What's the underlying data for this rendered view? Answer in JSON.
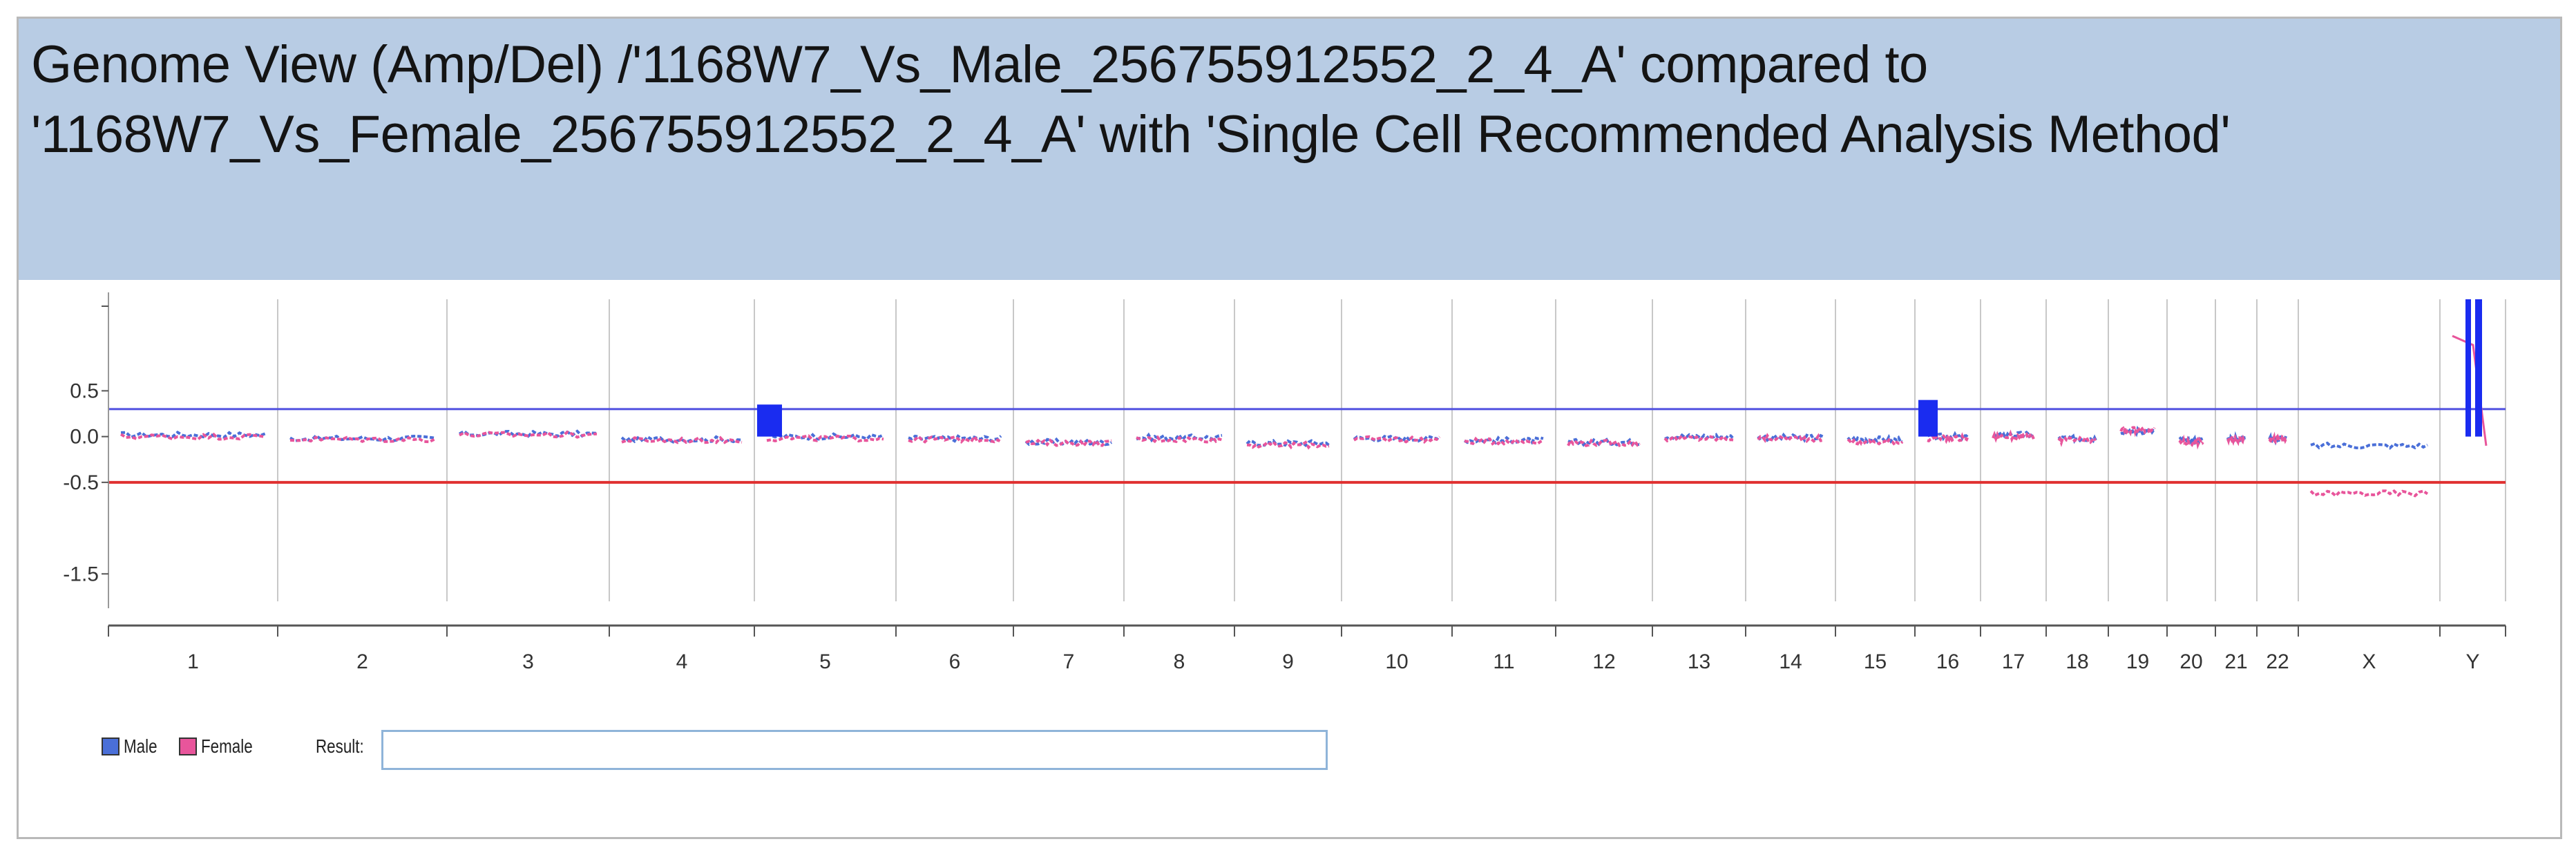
{
  "title": "Genome View (Amp/Del) /'1168W7_Vs_Male_256755912552_2_4_A' compared to '1168W7_Vs_Female_256755912552_2_4_A' with 'Single Cell Recommended Analysis Method'",
  "legend": {
    "male_label": "Male",
    "female_label": "Female",
    "result_label": "Result:",
    "result_value": ""
  },
  "colors": {
    "header_bg": "#b8cce4",
    "male": "#4a6fd8",
    "female": "#e8559b",
    "amp_threshold": "#5050e0",
    "del_threshold": "#e03030",
    "amp_segment": "#1a2cf0",
    "grid": "#c8c8c8"
  },
  "chart_data": {
    "type": "scatter",
    "title": "",
    "xlabel": "",
    "ylabel": "",
    "categories": [
      "1",
      "2",
      "3",
      "4",
      "5",
      "6",
      "7",
      "8",
      "9",
      "10",
      "11",
      "12",
      "13",
      "14",
      "15",
      "16",
      "17",
      "18",
      "19",
      "20",
      "21",
      "22",
      "X",
      "Y"
    ],
    "y_ticks": [
      0.5,
      0.0,
      -0.5,
      -1.5
    ],
    "y_tick_labels": [
      "0.5",
      "0.0",
      "-0.5",
      "-1.5"
    ],
    "ylim": [
      -1.8,
      1.5
    ],
    "thresholds": {
      "amplification": 0.3,
      "deletion": -0.5
    },
    "grid": true,
    "series": [
      {
        "name": "Male",
        "mean_log_ratio": [
          0.02,
          -0.02,
          0.03,
          -0.03,
          0.0,
          -0.02,
          -0.06,
          -0.01,
          -0.07,
          -0.02,
          -0.04,
          -0.06,
          0.0,
          -0.01,
          -0.03,
          0.0,
          0.02,
          -0.02,
          0.06,
          -0.04,
          -0.02,
          -0.02,
          -0.1,
          0.0
        ]
      },
      {
        "name": "Female",
        "mean_log_ratio": [
          0.0,
          -0.03,
          0.02,
          -0.04,
          -0.02,
          -0.03,
          -0.07,
          -0.03,
          -0.09,
          -0.03,
          -0.05,
          -0.07,
          -0.02,
          -0.02,
          -0.06,
          -0.02,
          0.0,
          -0.04,
          0.07,
          -0.06,
          -0.03,
          -0.03,
          -0.62,
          1.1
        ]
      }
    ],
    "aberration_segments": [
      {
        "chromosome": "5",
        "from_value": 0.0,
        "to_value": 0.35
      },
      {
        "chromosome": "16",
        "from_value": 0.0,
        "to_value": 0.4
      },
      {
        "chromosome": "Y",
        "from_value": 0.0,
        "to_value": 1.5
      },
      {
        "chromosome": "Y",
        "from_value": 0.0,
        "to_value": 1.5
      }
    ]
  }
}
